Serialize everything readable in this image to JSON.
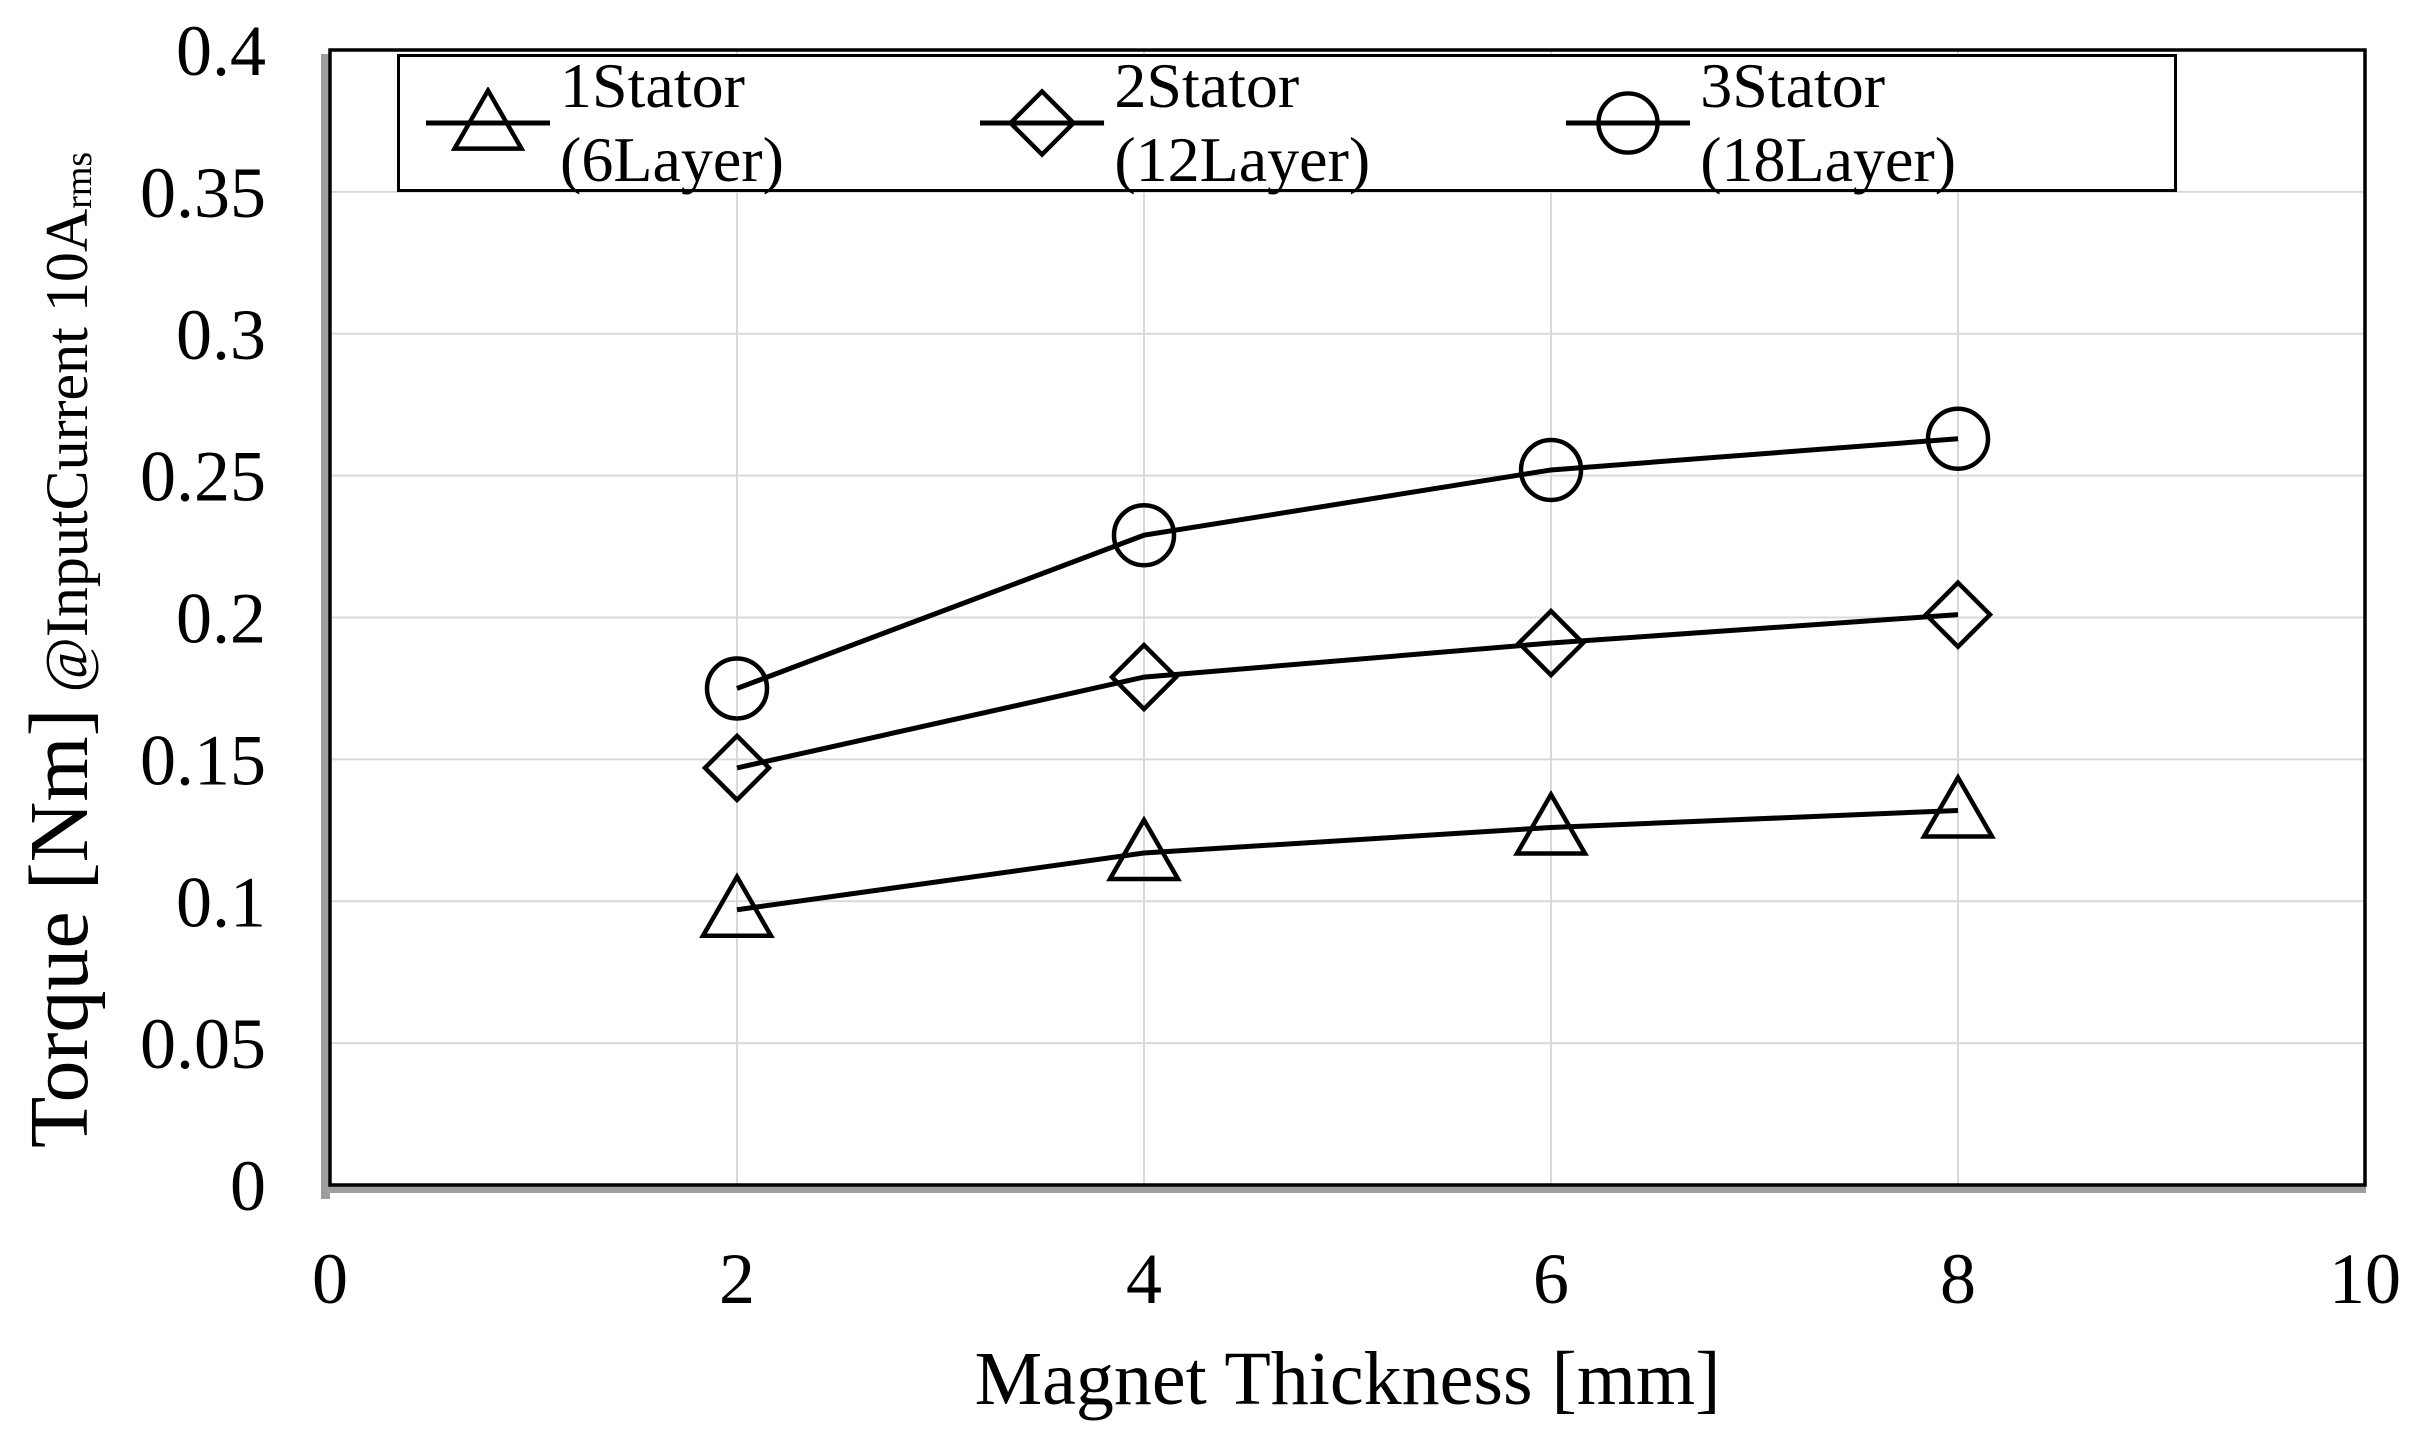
{
  "figure": {
    "background": "#ffffff",
    "plot_border_color": "#000000",
    "gridline_color": "#d9d9d9",
    "axis_line_color": "#9e9e9e",
    "text_color": "#000000"
  },
  "chart_data": {
    "type": "line",
    "title": "",
    "xlabel": "Magnet Thickness [mm]",
    "ylabel": "Torque [Nm]",
    "ylabel_annotation": "@InputCurrent 10A",
    "ylabel_annotation_subscript": "rms",
    "xlim": [
      0,
      10
    ],
    "ylim": [
      0,
      0.4
    ],
    "x_ticks": [
      0,
      2,
      4,
      6,
      8,
      10
    ],
    "x_tick_labels": [
      "0",
      "2",
      "4",
      "6",
      "8",
      "10"
    ],
    "y_ticks": [
      0,
      0.05,
      0.1,
      0.15,
      0.2,
      0.25,
      0.3,
      0.35,
      0.4
    ],
    "y_tick_labels": [
      "0",
      "0.05",
      "0.1",
      "0.15",
      "0.2",
      "0.25",
      "0.3",
      "0.35",
      "0.4"
    ],
    "grid": true,
    "legend_position": "top-inside",
    "x": [
      2,
      4,
      6,
      8
    ],
    "series": [
      {
        "name": "1Stator (6Layer)",
        "marker": "triangle",
        "color": "#000000",
        "values": [
          0.097,
          0.117,
          0.126,
          0.132
        ]
      },
      {
        "name": "2Stator (12Layer)",
        "marker": "diamond",
        "color": "#000000",
        "values": [
          0.147,
          0.179,
          0.191,
          0.201
        ]
      },
      {
        "name": "3Stator (18Layer)",
        "marker": "circle",
        "color": "#000000",
        "values": [
          0.175,
          0.229,
          0.252,
          0.263
        ]
      }
    ]
  }
}
